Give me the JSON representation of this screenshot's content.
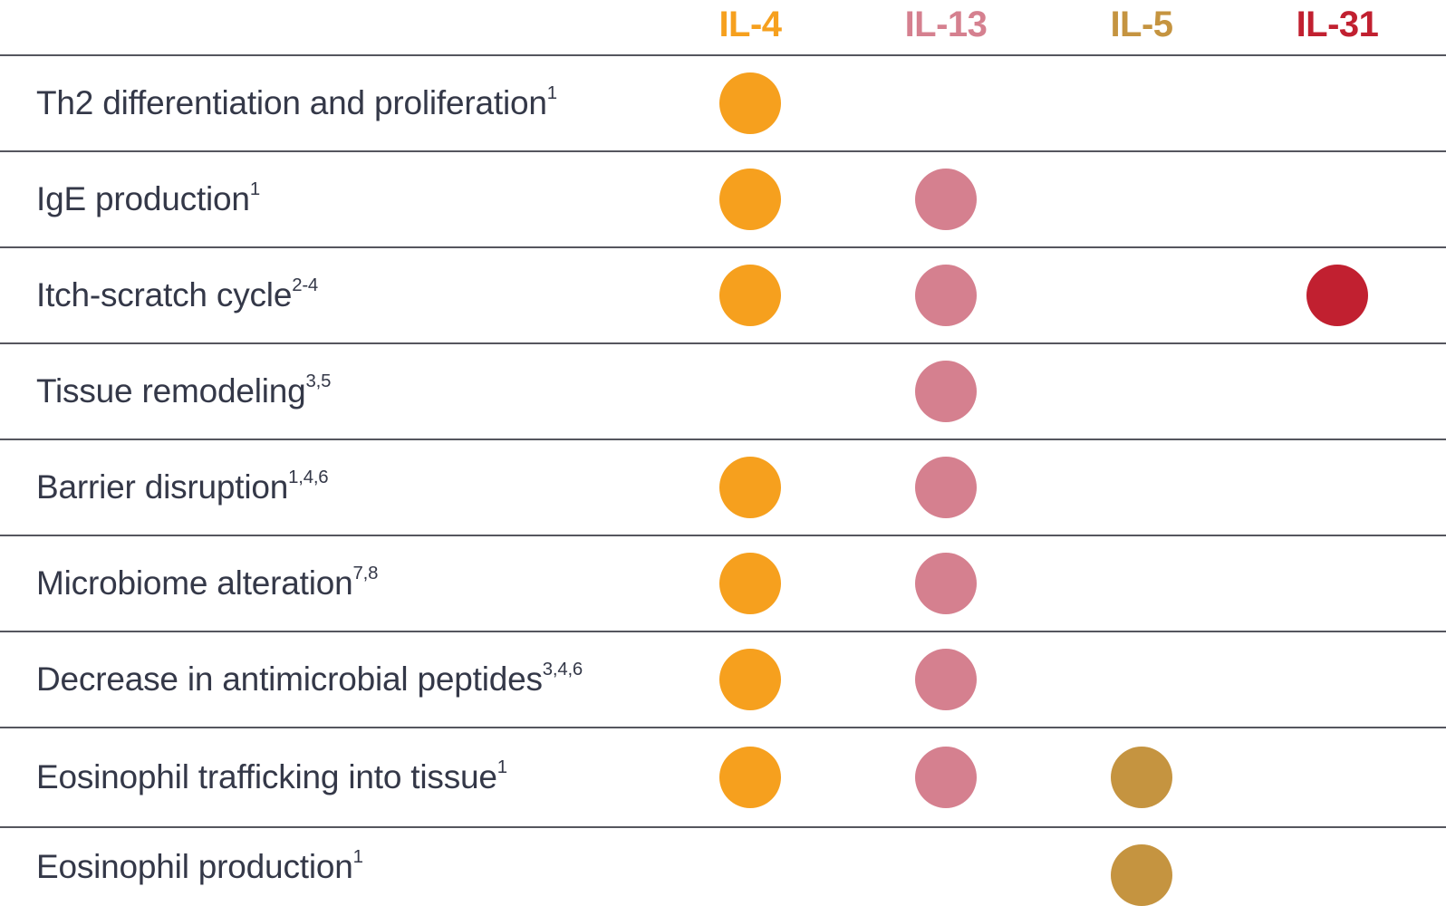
{
  "table": {
    "text_color": "#343848",
    "line_color": "#55565e",
    "columns": [
      {
        "id": "il4",
        "label": "IL-4",
        "color": "#F6A01E"
      },
      {
        "id": "il13",
        "label": "IL-13",
        "color": "#D5808F"
      },
      {
        "id": "il5",
        "label": "IL-5",
        "color": "#C59440"
      },
      {
        "id": "il31",
        "label": "IL-31",
        "color": "#C12030"
      }
    ],
    "rows": [
      {
        "label": "Th2 differentiation and proliferation",
        "sup": "1",
        "dots": [
          "il4"
        ]
      },
      {
        "label": "IgE production",
        "sup": "1",
        "dots": [
          "il4",
          "il13"
        ]
      },
      {
        "label": "Itch-scratch cycle",
        "sup": "2-4",
        "dots": [
          "il4",
          "il13",
          "il31"
        ]
      },
      {
        "label": "Tissue remodeling",
        "sup": "3,5",
        "dots": [
          "il13"
        ]
      },
      {
        "label": "Barrier disruption",
        "sup": "1,4,6",
        "dots": [
          "il4",
          "il13"
        ]
      },
      {
        "label": "Microbiome alteration",
        "sup": "7,8",
        "dots": [
          "il4",
          "il13"
        ]
      },
      {
        "label": "Decrease in antimicrobial peptides",
        "sup": "3,4,6",
        "dots": [
          "il4",
          "il13"
        ]
      },
      {
        "label": "Eosinophil trafficking into tissue",
        "sup": "1",
        "dots": [
          "il4",
          "il13",
          "il5"
        ]
      },
      {
        "label": "Eosinophil production",
        "sup": "1",
        "dots": [
          "il5"
        ]
      }
    ]
  },
  "chart_data": {
    "type": "table",
    "title": "",
    "columns": [
      "IL-4",
      "IL-13",
      "IL-5",
      "IL-31"
    ],
    "column_colors": [
      "#F6A01E",
      "#D5808F",
      "#C59440",
      "#C12030"
    ],
    "rows": [
      "Th2 differentiation and proliferation (ref 1)",
      "IgE production (ref 1)",
      "Itch-scratch cycle (refs 2-4)",
      "Tissue remodeling (refs 3,5)",
      "Barrier disruption (refs 1,4,6)",
      "Microbiome alteration (refs 7,8)",
      "Decrease in antimicrobial peptides (refs 3,4,6)",
      "Eosinophil trafficking into tissue (ref 1)",
      "Eosinophil production (ref 1)"
    ],
    "matrix": [
      [
        1,
        0,
        0,
        0
      ],
      [
        1,
        1,
        0,
        0
      ],
      [
        1,
        1,
        0,
        1
      ],
      [
        0,
        1,
        0,
        0
      ],
      [
        1,
        1,
        0,
        0
      ],
      [
        1,
        1,
        0,
        0
      ],
      [
        1,
        1,
        0,
        0
      ],
      [
        1,
        1,
        1,
        0
      ],
      [
        0,
        0,
        1,
        0
      ]
    ],
    "legend_position": "none",
    "grid": "horizontal-rules-only"
  }
}
